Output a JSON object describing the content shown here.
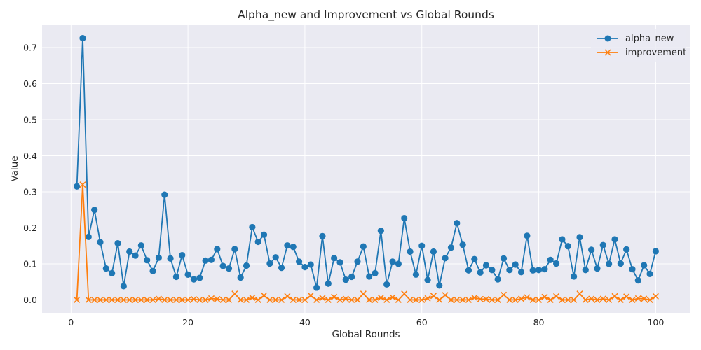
{
  "chart_data": {
    "type": "line",
    "title": "Alpha_new and Improvement vs Global Rounds",
    "xlabel": "Global Rounds",
    "ylabel": "Value",
    "xlim": [
      -4.95,
      105.95
    ],
    "ylim": [
      -0.036,
      0.764
    ],
    "xticks": [
      0,
      20,
      40,
      60,
      80,
      100
    ],
    "xtick_labels": [
      "0",
      "20",
      "40",
      "60",
      "80",
      "100"
    ],
    "yticks": [
      0.0,
      0.1,
      0.2,
      0.3,
      0.4,
      0.5,
      0.6,
      0.7
    ],
    "ytick_labels": [
      "0.0",
      "0.1",
      "0.2",
      "0.3",
      "0.4",
      "0.5",
      "0.6",
      "0.7"
    ],
    "grid": true,
    "legend_position": "top-right",
    "background_color": "#eaeaf2",
    "x": [
      1,
      2,
      3,
      4,
      5,
      6,
      7,
      8,
      9,
      10,
      11,
      12,
      13,
      14,
      15,
      16,
      17,
      18,
      19,
      20,
      21,
      22,
      23,
      24,
      25,
      26,
      27,
      28,
      29,
      30,
      31,
      32,
      33,
      34,
      35,
      36,
      37,
      38,
      39,
      40,
      41,
      42,
      43,
      44,
      45,
      46,
      47,
      48,
      49,
      50,
      51,
      52,
      53,
      54,
      55,
      56,
      57,
      58,
      59,
      60,
      61,
      62,
      63,
      64,
      65,
      66,
      67,
      68,
      69,
      70,
      71,
      72,
      73,
      74,
      75,
      76,
      77,
      78,
      79,
      80,
      81,
      82,
      83,
      84,
      85,
      86,
      87,
      88,
      89,
      90,
      91,
      92,
      93,
      94,
      95,
      96,
      97,
      98,
      99,
      100
    ],
    "series": [
      {
        "name": "alpha_new",
        "color": "#1f77b4",
        "marker": "circle",
        "values": [
          0.315,
          0.726,
          0.175,
          0.25,
          0.16,
          0.087,
          0.074,
          0.157,
          0.038,
          0.134,
          0.123,
          0.151,
          0.11,
          0.08,
          0.117,
          0.292,
          0.115,
          0.064,
          0.124,
          0.07,
          0.057,
          0.061,
          0.109,
          0.111,
          0.141,
          0.094,
          0.087,
          0.141,
          0.062,
          0.095,
          0.202,
          0.161,
          0.181,
          0.101,
          0.118,
          0.089,
          0.151,
          0.147,
          0.106,
          0.091,
          0.098,
          0.034,
          0.177,
          0.045,
          0.116,
          0.104,
          0.056,
          0.064,
          0.106,
          0.148,
          0.065,
          0.074,
          0.192,
          0.043,
          0.106,
          0.1,
          0.227,
          0.134,
          0.07,
          0.15,
          0.055,
          0.134,
          0.04,
          0.116,
          0.145,
          0.213,
          0.153,
          0.082,
          0.113,
          0.076,
          0.096,
          0.083,
          0.057,
          0.115,
          0.083,
          0.098,
          0.077,
          0.178,
          0.082,
          0.083,
          0.085,
          0.111,
          0.101,
          0.168,
          0.149,
          0.065,
          0.174,
          0.083,
          0.139,
          0.087,
          0.152,
          0.1,
          0.168,
          0.101,
          0.14,
          0.085,
          0.054,
          0.096,
          0.072,
          0.135
        ]
      },
      {
        "name": "improvement",
        "color": "#ff7f0e",
        "marker": "x",
        "values": [
          0.0,
          0.32,
          0.0,
          0.0,
          0.0,
          0.0,
          0.0,
          0.0,
          0.0,
          0.0,
          0.0,
          0.0,
          0.0,
          0.0,
          0.003,
          0.0,
          0.0,
          0.0,
          0.0,
          0.0,
          0.002,
          0.0,
          0.0,
          0.004,
          0.002,
          0.0,
          0.0,
          0.017,
          0.0,
          0.0,
          0.006,
          0.0,
          0.012,
          0.0,
          0.0,
          0.0,
          0.01,
          0.0,
          0.0,
          0.0,
          0.012,
          0.0,
          0.005,
          0.0,
          0.008,
          0.0,
          0.003,
          0.0,
          0.0,
          0.017,
          0.0,
          0.0,
          0.006,
          0.0,
          0.007,
          0.0,
          0.017,
          0.0,
          0.0,
          0.0,
          0.004,
          0.011,
          0.0,
          0.013,
          0.0,
          0.0,
          0.0,
          0.0,
          0.006,
          0.002,
          0.002,
          0.0,
          0.0,
          0.014,
          0.0,
          0.0,
          0.003,
          0.007,
          0.0,
          0.0,
          0.008,
          0.0,
          0.01,
          0.0,
          0.0,
          0.0,
          0.017,
          0.0,
          0.003,
          0.0,
          0.003,
          0.0,
          0.01,
          0.0,
          0.009,
          0.0,
          0.004,
          0.003,
          0.0,
          0.01
        ]
      }
    ]
  }
}
